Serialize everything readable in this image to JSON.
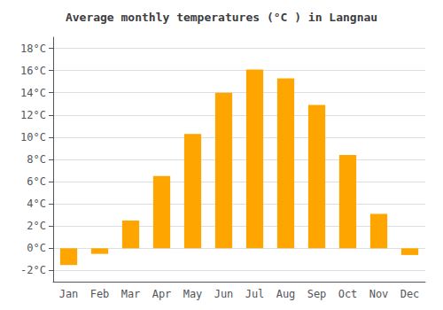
{
  "chart_data": {
    "type": "bar",
    "title": "Average monthly temperatures (°C ) in Langnau",
    "categories": [
      "Jan",
      "Feb",
      "Mar",
      "Apr",
      "May",
      "Jun",
      "Jul",
      "Aug",
      "Sep",
      "Oct",
      "Nov",
      "Dec"
    ],
    "values": [
      -1.5,
      -0.5,
      2.5,
      6.5,
      10.3,
      14.0,
      16.1,
      15.3,
      12.9,
      8.4,
      3.1,
      -0.6
    ],
    "color": "#FFA500",
    "ylim": [
      -3,
      19
    ],
    "yticks": [
      {
        "value": -2,
        "label": "-2°C"
      },
      {
        "value": 0,
        "label": "0°C"
      },
      {
        "value": 2,
        "label": "2°C"
      },
      {
        "value": 4,
        "label": "4°C"
      },
      {
        "value": 6,
        "label": "6°C"
      },
      {
        "value": 8,
        "label": "8°C"
      },
      {
        "value": 10,
        "label": "10°C"
      },
      {
        "value": 12,
        "label": "12°C"
      },
      {
        "value": 14,
        "label": "14°C"
      },
      {
        "value": 16,
        "label": "16°C"
      },
      {
        "value": 18,
        "label": "18°C"
      }
    ],
    "grid": true
  }
}
